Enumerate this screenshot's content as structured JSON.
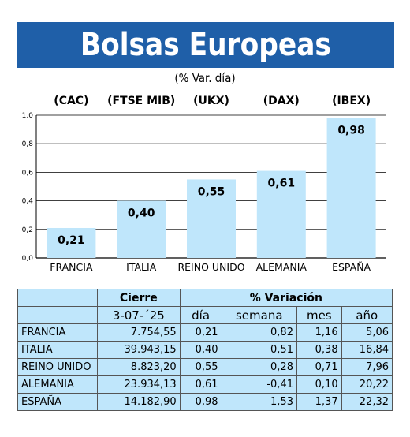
{
  "header": {
    "title": "Bolsas Europeas",
    "subtitle": "(% Var. día)"
  },
  "chart_data": {
    "type": "bar",
    "categories": [
      "FRANCIA",
      "ITALIA",
      "REINO UNIDO",
      "ALEMANIA",
      "ESPAÑA"
    ],
    "indices": [
      "(CAC)",
      "(FTSE MIB)",
      "(UKX)",
      "(DAX)",
      "(IBEX)"
    ],
    "values": [
      0.21,
      0.4,
      0.55,
      0.61,
      0.98
    ],
    "value_labels": [
      "0,21",
      "0,40",
      "0,55",
      "0,61",
      "0,98"
    ],
    "yticks": [
      "0,0",
      "0,2",
      "0,4",
      "0,6",
      "0,8",
      "1,0"
    ],
    "ylim": [
      0,
      1.0
    ],
    "grid": true,
    "bar_color": "#bfe6fb"
  },
  "table": {
    "group_headers": {
      "close": "Cierre",
      "variation": "% Variación"
    },
    "date": "3-07-´25",
    "columns": [
      "día",
      "semana",
      "mes",
      "año"
    ],
    "rows": [
      {
        "country": "FRANCIA",
        "close": "7.754,55",
        "dia": "0,21",
        "semana": "0,82",
        "mes": "1,16",
        "ano": "5,06"
      },
      {
        "country": "ITALIA",
        "close": "39.943,15",
        "dia": "0,40",
        "semana": "0,51",
        "mes": "0,38",
        "ano": "16,84"
      },
      {
        "country": "REINO UNIDO",
        "close": "8.823,20",
        "dia": "0,55",
        "semana": "0,28",
        "mes": "0,71",
        "ano": "7,96"
      },
      {
        "country": "ALEMANIA",
        "close": "23.934,13",
        "dia": "0,61",
        "semana": "-0,41",
        "mes": "0,10",
        "ano": "20,22"
      },
      {
        "country": "ESPAÑA",
        "close": "14.182,90",
        "dia": "0,98",
        "semana": "1,53",
        "mes": "1,37",
        "ano": "22,32"
      }
    ]
  },
  "colors": {
    "banner": "#1f5fa8",
    "bars": "#bfe6fb",
    "table_bg": "#bfe6fb"
  }
}
